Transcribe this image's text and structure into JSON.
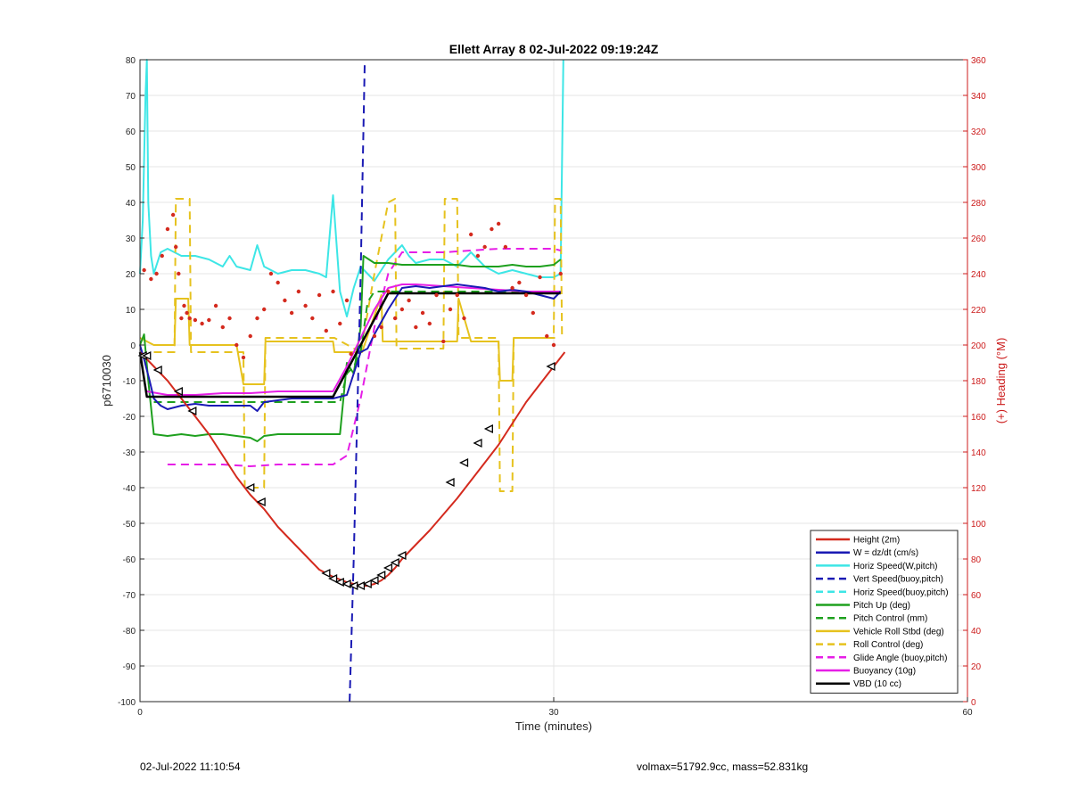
{
  "chart_data": {
    "type": "line",
    "title": "Ellett Array 8 02-Jul-2022 09:19:24Z",
    "xlabel": "Time (minutes)",
    "ylabel": "p6710030",
    "y2label": "(+) Heading (°M)",
    "xlim": [
      0,
      60
    ],
    "ylim": [
      -100,
      80
    ],
    "y2lim": [
      0,
      360
    ],
    "xticks": [
      0,
      30,
      60
    ],
    "yticks": [
      -100,
      -90,
      -80,
      -70,
      -60,
      -50,
      -40,
      -30,
      -20,
      -10,
      0,
      10,
      20,
      30,
      40,
      50,
      60,
      70,
      80
    ],
    "y2ticks": [
      0,
      20,
      40,
      60,
      80,
      100,
      120,
      140,
      160,
      180,
      200,
      220,
      240,
      260,
      280,
      300,
      320,
      340,
      360
    ],
    "grid": true,
    "legend_position": "bottom-right",
    "colors": {
      "height": "#d42a1e",
      "w": "#1a1ab4",
      "horiz_speed": "#3de6e6",
      "vert_speed_buoy": "#1a1ab4",
      "horiz_speed_buoy": "#3de6e6",
      "pitch_up": "#1ea01e",
      "pitch_control": "#1ea01e",
      "roll": "#e6c21e",
      "roll_control": "#e6c21e",
      "glide_angle": "#e61ee6",
      "buoyancy": "#e61ee6",
      "vbd": "#000000",
      "heading": "#d42a1e",
      "right_axis": "#cc1b1b"
    },
    "series": [
      {
        "key": "height",
        "name": "Height (2m)",
        "style": "solid",
        "color": "#d42a1e",
        "x": [
          0,
          1,
          2,
          3,
          4,
          5,
          6,
          7,
          8,
          9,
          10,
          11,
          12,
          13,
          14,
          15,
          15.5,
          16,
          16.5,
          17,
          17.5,
          18,
          18.5,
          19,
          20,
          21,
          22,
          23,
          24,
          25,
          26,
          27,
          28,
          29,
          30,
          30.8
        ],
        "y": [
          -2,
          -6,
          -10,
          -15,
          -20,
          -25,
          -31,
          -37,
          -42,
          -46,
          -51,
          -55,
          -59,
          -63,
          -65,
          -66.5,
          -67,
          -67.5,
          -67.5,
          -67,
          -66,
          -64.5,
          -62.5,
          -60,
          -56,
          -52,
          -47.5,
          -43,
          -38,
          -33,
          -28,
          -22,
          -16,
          -11,
          -6,
          -2
        ]
      },
      {
        "key": "w",
        "name": "W = dz/dt (cm/s)",
        "style": "solid",
        "color": "#1a1ab4",
        "x": [
          0,
          0.3,
          0.7,
          1,
          1.5,
          2,
          3,
          4,
          5,
          6,
          7,
          8,
          8.5,
          9,
          10,
          11,
          12,
          13,
          14,
          15,
          15.5,
          16,
          16.5,
          17,
          18,
          19,
          20,
          21,
          22,
          23,
          24,
          25,
          26,
          27,
          28,
          29,
          30,
          30.5
        ],
        "y": [
          0,
          -4,
          -10,
          -15,
          -17,
          -18,
          -17,
          -16.5,
          -17,
          -17,
          -17,
          -17,
          -18.5,
          -16,
          -15.5,
          -15,
          -15,
          -15,
          -15,
          -14,
          -8,
          -2,
          -1,
          3,
          10,
          16,
          16.5,
          16,
          16.5,
          17,
          16.5,
          16,
          15,
          15.5,
          15,
          14,
          13,
          15
        ]
      },
      {
        "key": "horiz_speed",
        "name": "Horiz Speed(W,pitch)",
        "style": "solid",
        "color": "#3de6e6",
        "x": [
          0,
          0.2,
          0.4,
          0.5,
          0.6,
          0.8,
          1,
          1.5,
          2,
          3,
          4,
          5,
          6,
          6.5,
          7,
          8,
          8.5,
          9,
          10,
          11,
          12,
          13,
          13.5,
          14,
          14.5,
          15,
          15.5,
          16,
          16.5,
          17,
          18,
          19,
          19.5,
          20,
          21,
          22,
          23,
          24,
          25,
          26,
          27,
          28,
          29,
          30,
          30.5,
          30.7
        ],
        "y": [
          20,
          35,
          70,
          80,
          40,
          25,
          20,
          26,
          27,
          25,
          25,
          24,
          22,
          25,
          22,
          21,
          28,
          22,
          20,
          21,
          21,
          20,
          19,
          42,
          15,
          8,
          16,
          22,
          20,
          18,
          24,
          28,
          25,
          23,
          24,
          24,
          22,
          26,
          22,
          20,
          21,
          20,
          19,
          19,
          20,
          80
        ]
      },
      {
        "key": "vert_speed_buoy",
        "name": "Vert Speed(buoy,pitch)",
        "style": "dashed",
        "color": "#1a1ab4",
        "x": [
          15.2,
          15.5,
          16,
          16.3
        ],
        "y": [
          -100,
          -60,
          20,
          80
        ]
      },
      {
        "key": "horiz_speed_buoy",
        "name": "Horiz Speed(buoy,pitch)",
        "style": "dashed",
        "color": "#3de6e6",
        "x": [],
        "y": []
      },
      {
        "key": "pitch_up",
        "name": "Pitch Up (deg)",
        "style": "solid",
        "color": "#1ea01e",
        "x": [
          0,
          0.3,
          0.6,
          1,
          2,
          3,
          4,
          5,
          6,
          7,
          8,
          8.5,
          9,
          10,
          11,
          12,
          13,
          14,
          14.5,
          15,
          15.5,
          16,
          16.2,
          17,
          18,
          19,
          20,
          21,
          22,
          23,
          24,
          25,
          26,
          27,
          28,
          29,
          30,
          30.5
        ],
        "y": [
          0,
          3,
          -10,
          -25,
          -25.5,
          -25,
          -25.5,
          -25,
          -25,
          -25.5,
          -26,
          -27,
          -25.5,
          -25,
          -25,
          -25,
          -25,
          -25,
          -25,
          -5,
          -8,
          5,
          25,
          23,
          23,
          22.5,
          22.5,
          22.5,
          22.5,
          22.5,
          22,
          22,
          22,
          22.5,
          22,
          22,
          22.5,
          24
        ]
      },
      {
        "key": "pitch_control",
        "name": "Pitch Control (mm)",
        "style": "dashed",
        "color": "#1ea01e",
        "x": [
          1,
          14,
          14.5,
          15,
          15.5,
          16,
          16.5,
          17,
          30.5
        ],
        "y": [
          -16,
          -16,
          -16,
          -8,
          -6,
          -2,
          12,
          15,
          15
        ]
      },
      {
        "key": "roll",
        "name": "Vehicle Roll Stbd (deg)",
        "style": "solid",
        "color": "#e6c21e",
        "x": [
          0,
          1,
          2,
          2.5,
          2.6,
          3.5,
          3.6,
          4,
          5,
          6,
          7,
          7.5,
          7.6,
          9,
          9.1,
          11,
          12,
          13,
          14,
          14.1,
          16,
          16.1,
          17.5,
          17.6,
          19,
          19.1,
          22,
          23,
          23.1,
          24,
          24.1,
          26,
          26.1,
          27,
          27.1,
          28,
          29,
          30,
          30.1
        ],
        "y": [
          2,
          0,
          0,
          0,
          13,
          13,
          0,
          0,
          0,
          0,
          0,
          -11,
          -11,
          -11,
          1,
          1,
          1,
          1,
          1,
          -2,
          -2,
          -2,
          14,
          1,
          1,
          1,
          1,
          1,
          13,
          1,
          1,
          1,
          -10,
          -10,
          2,
          2,
          2,
          2,
          2
        ]
      },
      {
        "key": "roll_control",
        "name": "Roll Control (deg)",
        "style": "dashed",
        "color": "#e6c21e",
        "x": [
          1,
          2.5,
          2.6,
          3.6,
          3.7,
          5,
          7.5,
          7.6,
          9,
          9.1,
          14,
          14.1,
          16,
          17,
          18,
          18.5,
          18.6,
          22,
          22.1,
          23,
          23.1,
          24,
          24.1,
          26,
          26.1,
          27,
          27.1,
          30,
          30.1,
          30.5,
          30.6
        ],
        "y": [
          -2,
          -2,
          41,
          41,
          -2,
          -2,
          -2,
          -40,
          -40,
          2,
          2,
          2,
          -2,
          20,
          40,
          41,
          -1,
          -1,
          41,
          41,
          2,
          2,
          2,
          2,
          -41,
          -41,
          2,
          2,
          41,
          41,
          2
        ]
      },
      {
        "key": "glide_angle",
        "name": "Glide Angle (buoy,pitch)",
        "style": "dashed",
        "color": "#e61ee6",
        "x": [
          2,
          4,
          6,
          8,
          10,
          12,
          14,
          15,
          16,
          17,
          18,
          19,
          20,
          22,
          24,
          26,
          28,
          30,
          30.5
        ],
        "y": [
          -33.5,
          -33.5,
          -33.5,
          -34,
          -33.5,
          -33.5,
          -33.5,
          -31,
          -15,
          5,
          20,
          26,
          26,
          26,
          26.5,
          27,
          27,
          27,
          26.5
        ]
      },
      {
        "key": "buoyancy",
        "name": "Buoyancy (10g)",
        "style": "solid",
        "color": "#e61ee6",
        "x": [
          0.5,
          2,
          4,
          6,
          8,
          10,
          12,
          14,
          15,
          16,
          17,
          18,
          19,
          20,
          22,
          24,
          26,
          28,
          30.5
        ],
        "y": [
          -13,
          -14,
          -14,
          -13.5,
          -13.5,
          -13,
          -13,
          -13,
          -6,
          2,
          10,
          16,
          17,
          17,
          16.5,
          16,
          15.5,
          15,
          15
        ]
      },
      {
        "key": "vbd",
        "name": "VBD (10 cc)",
        "style": "solid",
        "color": "#000000",
        "x": [
          0,
          0.5,
          14,
          18,
          30.5
        ],
        "y": [
          -2,
          -14.5,
          -14.5,
          14.5,
          14.5
        ]
      }
    ],
    "heading_points": {
      "name": "Heading",
      "color": "#d42a1e",
      "x": [
        0.3,
        0.8,
        1.2,
        1.6,
        2.0,
        2.4,
        2.6,
        2.8,
        3.0,
        3.2,
        3.4,
        3.6,
        4.0,
        4.5,
        5.0,
        5.5,
        6.0,
        6.5,
        7.0,
        7.5,
        8.0,
        8.5,
        9.0,
        9.5,
        10.0,
        10.5,
        11.0,
        11.5,
        12.0,
        12.5,
        13.0,
        13.5,
        14.0,
        14.5,
        15.0,
        15.3,
        17.0,
        17.5,
        18.0,
        18.5,
        19.0,
        19.5,
        20.0,
        20.5,
        21.0,
        21.5,
        22.0,
        22.5,
        23.0,
        23.5,
        24.0,
        24.5,
        25.0,
        25.5,
        26.0,
        26.5,
        27.0,
        27.5,
        28.0,
        28.5,
        29.0,
        29.5,
        30.0,
        30.5
      ],
      "y": [
        242,
        237,
        240,
        250,
        265,
        273,
        255,
        240,
        215,
        222,
        218,
        215,
        214,
        212,
        214,
        222,
        210,
        215,
        200,
        193,
        205,
        215,
        220,
        240,
        235,
        225,
        218,
        230,
        222,
        215,
        228,
        208,
        230,
        212,
        225,
        195,
        205,
        210,
        230,
        215,
        220,
        225,
        210,
        218,
        212,
        228,
        202,
        220,
        228,
        215,
        262,
        250,
        255,
        265,
        268,
        255,
        232,
        235,
        228,
        218,
        238,
        205,
        200,
        240
      ]
    },
    "height_markers": {
      "x": [
        0.2,
        0.5,
        1.3,
        2.8,
        3.8,
        8,
        8.8,
        13.5,
        14,
        14.5,
        15,
        15.5,
        16,
        16.5,
        17,
        17.5,
        18,
        18.5,
        19,
        22.5,
        23.5,
        24.5,
        25.3,
        29.8
      ],
      "y": [
        -3,
        -3,
        -7,
        -13,
        -18.5,
        -40,
        -44,
        -64,
        -65.5,
        -66.5,
        -67,
        -67.5,
        -67.5,
        -67,
        -66,
        -64.5,
        -62.5,
        -61,
        -59,
        -38.5,
        -33,
        -27.5,
        -23.5,
        -6
      ]
    }
  },
  "footer": {
    "timestamp": "02-Jul-2022 11:10:54",
    "stats": "volmax=51792.9cc, mass=52.831kg"
  }
}
